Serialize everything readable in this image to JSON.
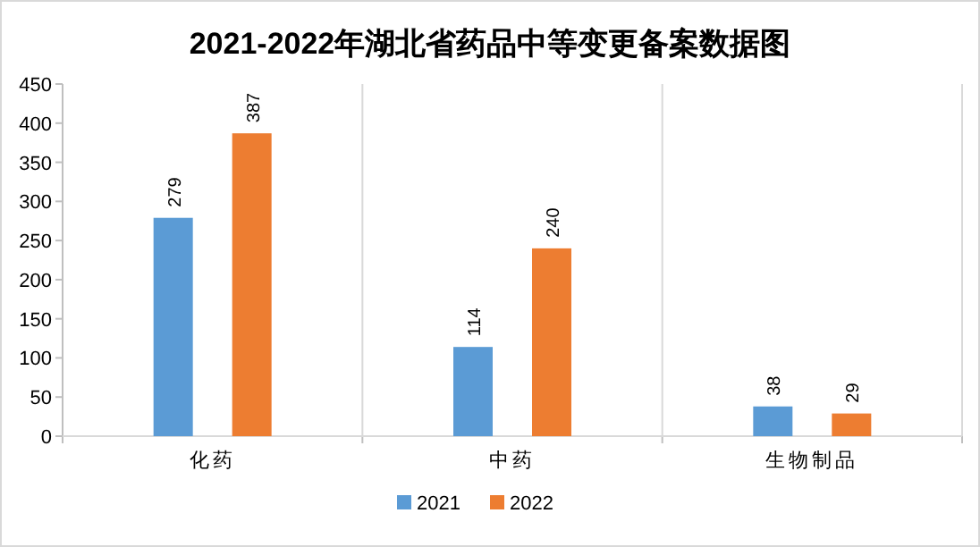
{
  "chart_data": {
    "type": "bar",
    "title": "2021-2022年湖北省药品中等变更备案数据图",
    "categories": [
      "化药",
      "中药",
      "生物制品"
    ],
    "series": [
      {
        "name": "2021",
        "color": "#5b9bd5",
        "values": [
          279,
          114,
          38
        ]
      },
      {
        "name": "2022",
        "color": "#ed7d31",
        "values": [
          387,
          240,
          29
        ]
      }
    ],
    "ylim": [
      0,
      450
    ],
    "yticks": [
      0,
      50,
      100,
      150,
      200,
      250,
      300,
      350,
      400,
      450
    ],
    "grid": "x",
    "legend": "bottom",
    "data_labels": true
  }
}
